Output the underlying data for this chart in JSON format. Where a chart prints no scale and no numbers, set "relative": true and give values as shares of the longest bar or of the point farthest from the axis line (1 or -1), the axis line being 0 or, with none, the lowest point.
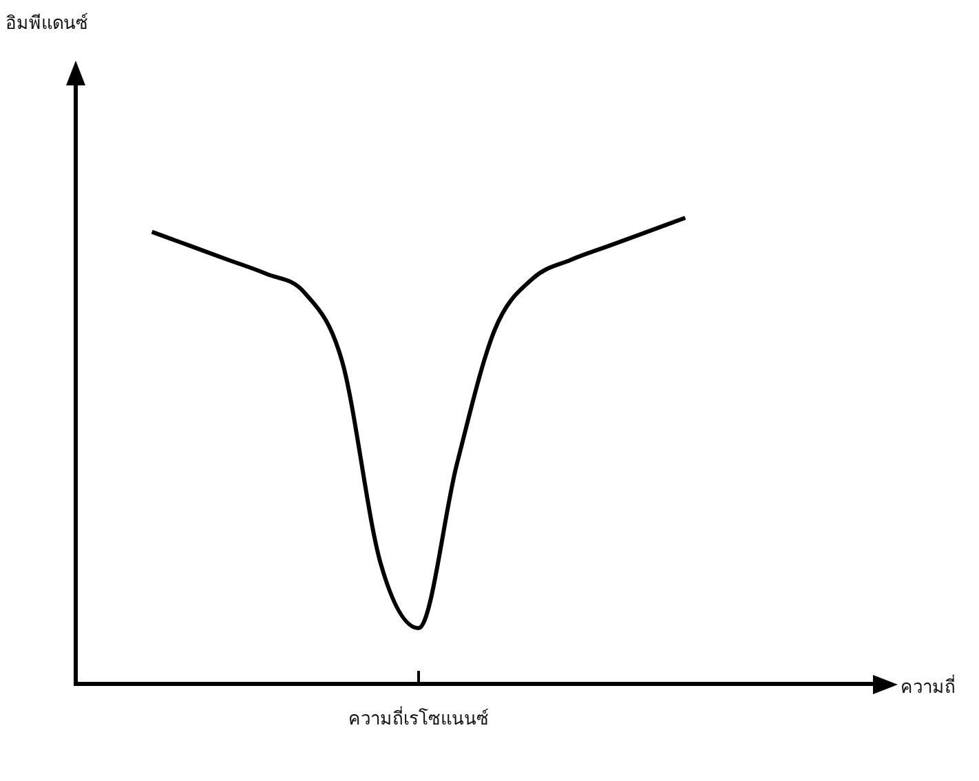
{
  "chart_data": {
    "type": "line",
    "relative": true,
    "xlabel": "ความถี่",
    "annotations": [
      "อิมพีแดนซ์",
      "ความถี่เรโซแนนซ์"
    ],
    "categories": [
      null,
      null,
      null,
      null,
      null,
      null,
      null,
      null,
      null,
      null,
      null,
      null,
      null,
      null,
      null,
      null,
      null,
      null,
      null,
      null,
      null,
      null
    ],
    "grid": false,
    "legend": false,
    "marker": "none",
    "line_style": "solid",
    "series": [
      {
        "color": "#000000",
        "values": [
          null,
          null,
          0.97,
          0.94,
          0.91,
          0.88,
          0.84,
          0.69,
          0.26,
          0.12,
          0.47,
          0.76,
          0.87,
          0.91,
          0.94,
          0.97,
          1,
          null,
          null,
          null,
          null,
          null
        ]
      }
    ]
  }
}
